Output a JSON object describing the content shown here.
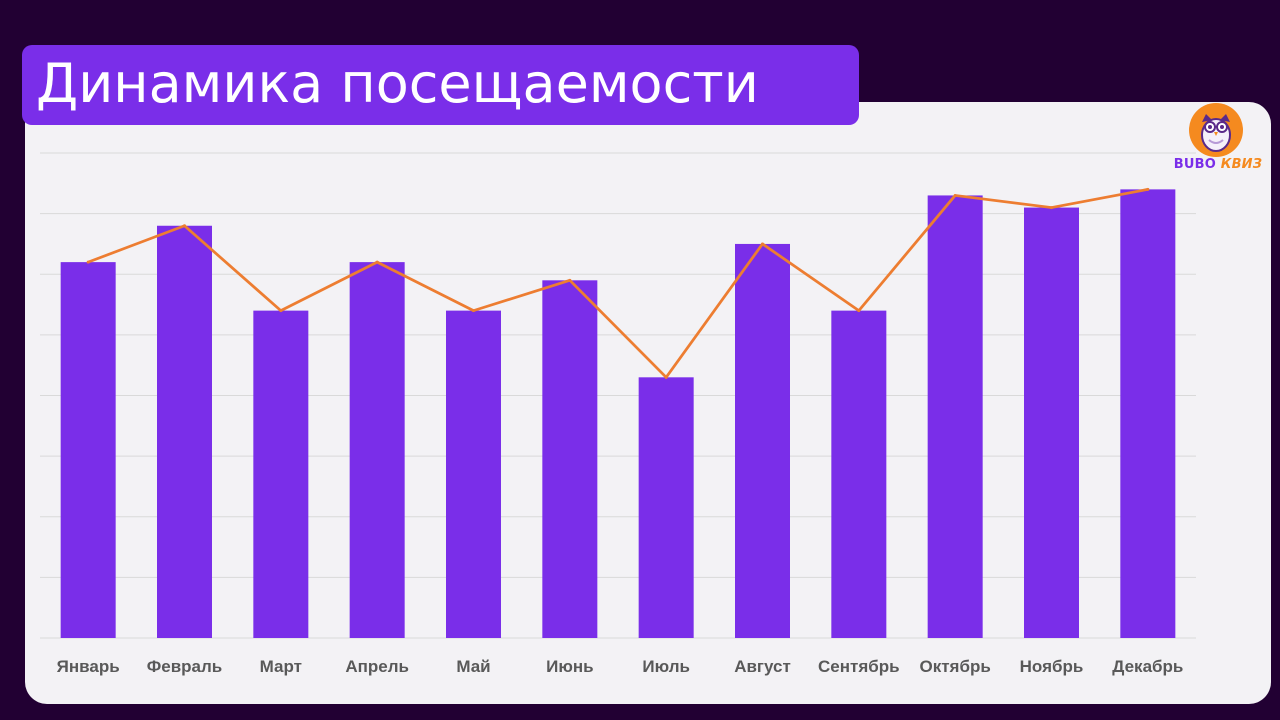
{
  "title": "Динамика посещаемости",
  "logo": {
    "word1": "BUBO",
    "word2": "КВИЗ",
    "icon": "owl-icon"
  },
  "colors": {
    "background": "#220033",
    "panel": "#f3f2f5",
    "bar": "#7a2ee9",
    "line": "#ed7d31",
    "grid": "#d9d9d9",
    "logo_circle": "#f58a1f"
  },
  "chart_data": {
    "type": "bar",
    "categories": [
      "Январь",
      "Февраль",
      "Март",
      "Апрель",
      "Май",
      "Июнь",
      "Июль",
      "Август",
      "Сентябрь",
      "Октябрь",
      "Ноябрь",
      "Декабрь"
    ],
    "series": [
      {
        "type": "bar",
        "values": [
          62,
          68,
          54,
          62,
          54,
          59,
          43,
          65,
          54,
          73,
          71,
          74
        ]
      },
      {
        "type": "line",
        "values": [
          62,
          68,
          54,
          62,
          54,
          59,
          43,
          65,
          54,
          73,
          71,
          74
        ]
      }
    ],
    "title": "",
    "xlabel": "",
    "ylabel": "",
    "ylim": [
      0,
      80
    ],
    "gridlines": true,
    "y_tick_labels_visible": false,
    "legend": "none"
  }
}
